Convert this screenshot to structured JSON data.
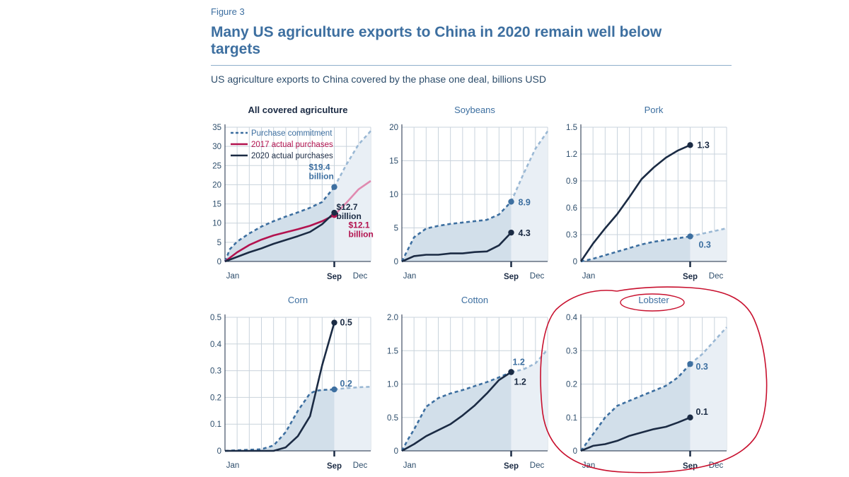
{
  "figure_label": "Figure 3",
  "title": "Many US agriculture exports to China in 2020 remain well below targets",
  "subtitle": "US agriculture exports to China covered by the phase one deal, billions USD",
  "colors": {
    "commitment": "#3d6fa0",
    "commitment_light": "#9ab8d4",
    "actual_2020": "#1b2b44",
    "actual_2017": "#b3124f",
    "actual_2017_light": "#e08ab0",
    "fill": "#d2dfea",
    "fill_light": "#e9eff5",
    "grid": "#c9d3dc",
    "text": "#2d4d6b",
    "annotation": "#c8102e"
  },
  "chart_data": [
    {
      "type": "line",
      "title": "All covered agriculture",
      "x_labels": [
        "Jan",
        "Sep",
        "Dec"
      ],
      "y_ticks": [
        "0",
        "5",
        "10",
        "15",
        "20",
        "25",
        "30",
        "35"
      ],
      "ylim": [
        0,
        35
      ],
      "legend": [
        "Purchase commitment",
        "2017 actual purchases",
        "2020 actual purchases"
      ],
      "series": [
        {
          "name": "Purchase commitment",
          "x": [
            0,
            0.4,
            1,
            2,
            3,
            4,
            5,
            6,
            7,
            8,
            9,
            10,
            11,
            12
          ],
          "values": [
            0,
            3.2,
            5.2,
            7.3,
            9.1,
            10.5,
            11.7,
            12.8,
            14,
            15.5,
            19.4,
            25.3,
            30.5,
            34
          ]
        },
        {
          "name": "2017 actual purchases",
          "x": [
            0,
            1,
            2,
            3,
            4,
            5,
            6,
            7,
            8,
            9,
            10,
            11,
            12
          ],
          "values": [
            0,
            2.4,
            4.3,
            5.7,
            6.8,
            7.6,
            8.4,
            9.3,
            10.5,
            12.1,
            15.3,
            18.8,
            21
          ]
        },
        {
          "name": "2020 actual purchases",
          "x": [
            0,
            1,
            2,
            3,
            4,
            5,
            6,
            7,
            8,
            9
          ],
          "values": [
            0,
            1.2,
            2.4,
            3.4,
            4.6,
            5.6,
            6.6,
            7.7,
            9.7,
            12.7
          ]
        }
      ],
      "labels": {
        "commitment": "$19.4 billion",
        "actual_2020": "$12.7 billion",
        "actual_2017": "$12.1 billion"
      }
    },
    {
      "type": "line",
      "title": "Soybeans",
      "x_labels": [
        "Jan",
        "Sep",
        "Dec"
      ],
      "y_ticks": [
        "0",
        "5",
        "10",
        "15",
        "20"
      ],
      "ylim": [
        0,
        20
      ],
      "series": [
        {
          "name": "Purchase commitment",
          "x": [
            0,
            0.5,
            1,
            2,
            3,
            4,
            5,
            6,
            7,
            8,
            9,
            10,
            11,
            12
          ],
          "values": [
            0,
            1.8,
            3.6,
            4.9,
            5.3,
            5.6,
            5.8,
            6,
            6.2,
            7,
            8.9,
            13,
            16.8,
            19.4
          ]
        },
        {
          "name": "2020 actual purchases",
          "x": [
            0,
            1,
            2,
            3,
            4,
            5,
            6,
            7,
            8,
            9
          ],
          "values": [
            0,
            0.8,
            1,
            1,
            1.2,
            1.2,
            1.4,
            1.5,
            2.4,
            4.3
          ]
        }
      ],
      "labels": {
        "commitment": "8.9",
        "actual_2020": "4.3"
      }
    },
    {
      "type": "line",
      "title": "Pork",
      "x_labels": [
        "Jan",
        "Sep",
        "Dec"
      ],
      "y_ticks": [
        "0",
        "0.3",
        "0.6",
        "0.9",
        "1.2",
        "1.5"
      ],
      "ylim": [
        0,
        1.5
      ],
      "series": [
        {
          "name": "Purchase commitment",
          "x": [
            0,
            1,
            2,
            3,
            4,
            5,
            6,
            7,
            8,
            9,
            10,
            11,
            12
          ],
          "values": [
            0,
            0.03,
            0.07,
            0.11,
            0.15,
            0.19,
            0.22,
            0.24,
            0.26,
            0.28,
            0.31,
            0.34,
            0.37
          ]
        },
        {
          "name": "2020 actual purchases",
          "x": [
            0,
            1,
            2,
            3,
            4,
            5,
            6,
            7,
            8,
            9
          ],
          "values": [
            0,
            0.2,
            0.37,
            0.53,
            0.72,
            0.92,
            1.05,
            1.16,
            1.24,
            1.3
          ]
        }
      ],
      "labels": {
        "commitment": "0.3",
        "actual_2020": "1.3"
      }
    },
    {
      "type": "line",
      "title": "Corn",
      "x_labels": [
        "Jan",
        "Sep",
        "Dec"
      ],
      "y_ticks": [
        "0",
        "0.1",
        "0.2",
        "0.3",
        "0.4",
        "0.5"
      ],
      "ylim": [
        0,
        0.5
      ],
      "series": [
        {
          "name": "Purchase commitment",
          "x": [
            0,
            1,
            2,
            3,
            4,
            5,
            6,
            7,
            7.5,
            8,
            9,
            10,
            11,
            12
          ],
          "values": [
            0,
            0.002,
            0.004,
            0.006,
            0.02,
            0.07,
            0.15,
            0.215,
            0.225,
            0.228,
            0.23,
            0.235,
            0.238,
            0.24
          ]
        },
        {
          "name": "2020 actual purchases",
          "x": [
            0,
            1,
            2,
            3,
            4,
            5,
            6,
            7,
            8,
            9
          ],
          "values": [
            0,
            0,
            0,
            0,
            0,
            0.013,
            0.055,
            0.13,
            0.32,
            0.48
          ]
        }
      ],
      "labels": {
        "commitment": "0.2",
        "actual_2020": "0.5"
      }
    },
    {
      "type": "line",
      "title": "Cotton",
      "x_labels": [
        "Jan",
        "Sep",
        "Dec"
      ],
      "y_ticks": [
        "0",
        "0.5",
        "1.0",
        "1.5",
        "2.0"
      ],
      "ylim": [
        0,
        2.0
      ],
      "series": [
        {
          "name": "Purchase commitment",
          "x": [
            0,
            0.5,
            1,
            2,
            3,
            4,
            5,
            6,
            7,
            8,
            9,
            10,
            11,
            12
          ],
          "values": [
            0,
            0.17,
            0.32,
            0.66,
            0.79,
            0.86,
            0.91,
            0.97,
            1.03,
            1.1,
            1.18,
            1.22,
            1.31,
            1.52
          ]
        },
        {
          "name": "2020 actual purchases",
          "x": [
            0,
            1,
            2,
            3,
            4,
            5,
            6,
            7,
            8,
            9
          ],
          "values": [
            0,
            0.1,
            0.22,
            0.31,
            0.4,
            0.53,
            0.68,
            0.86,
            1.06,
            1.18
          ]
        }
      ],
      "labels": {
        "commitment": "1.2",
        "actual_2020": "1.2"
      }
    },
    {
      "type": "line",
      "title": "Lobster",
      "x_labels": [
        "Jan",
        "Sep",
        "Dec"
      ],
      "y_ticks": [
        "0",
        "0.1",
        "0.2",
        "0.3",
        "0.4"
      ],
      "ylim": [
        0,
        0.4
      ],
      "series": [
        {
          "name": "Purchase commitment",
          "x": [
            0,
            1,
            2,
            3,
            4,
            5,
            6,
            7,
            8,
            9,
            10,
            11,
            12
          ],
          "values": [
            0,
            0.05,
            0.1,
            0.135,
            0.15,
            0.165,
            0.18,
            0.195,
            0.22,
            0.26,
            0.29,
            0.33,
            0.37
          ]
        },
        {
          "name": "2020 actual purchases",
          "x": [
            0,
            1,
            2,
            3,
            4,
            5,
            6,
            7,
            8,
            9
          ],
          "values": [
            0,
            0.015,
            0.02,
            0.03,
            0.045,
            0.055,
            0.065,
            0.072,
            0.085,
            0.1
          ]
        }
      ],
      "labels": {
        "commitment": "0.3",
        "actual_2020": "0.1"
      }
    }
  ]
}
